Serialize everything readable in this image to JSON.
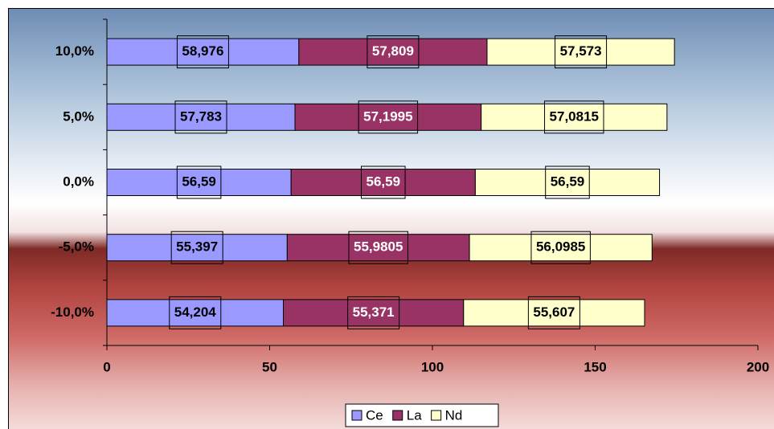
{
  "chart_data": {
    "type": "stacked-bar-horizontal",
    "categories": [
      "10,0%",
      "5,0%",
      "0,0%",
      "-5,0%",
      "-10,0%"
    ],
    "series": [
      {
        "name": "Ce",
        "color": "#9999ff",
        "values": [
          58.976,
          57.783,
          56.59,
          55.397,
          54.204
        ],
        "value_labels": [
          "58,976",
          "57,783",
          "56,59",
          "55,397",
          "54,204"
        ]
      },
      {
        "name": "La",
        "color": "#993366",
        "values": [
          57.809,
          57.1995,
          56.59,
          55.9805,
          55.371
        ],
        "value_labels": [
          "57,809",
          "57,1995",
          "56,59",
          "55,9805",
          "55,371"
        ]
      },
      {
        "name": "Nd",
        "color": "#ffffcc",
        "values": [
          57.573,
          57.0815,
          56.59,
          56.0985,
          55.607
        ],
        "value_labels": [
          "57,573",
          "57,0815",
          "56,59",
          "56,0985",
          "55,607"
        ]
      }
    ],
    "xlim": [
      0,
      200
    ],
    "xticks": [
      0,
      50,
      100,
      150,
      200
    ]
  }
}
